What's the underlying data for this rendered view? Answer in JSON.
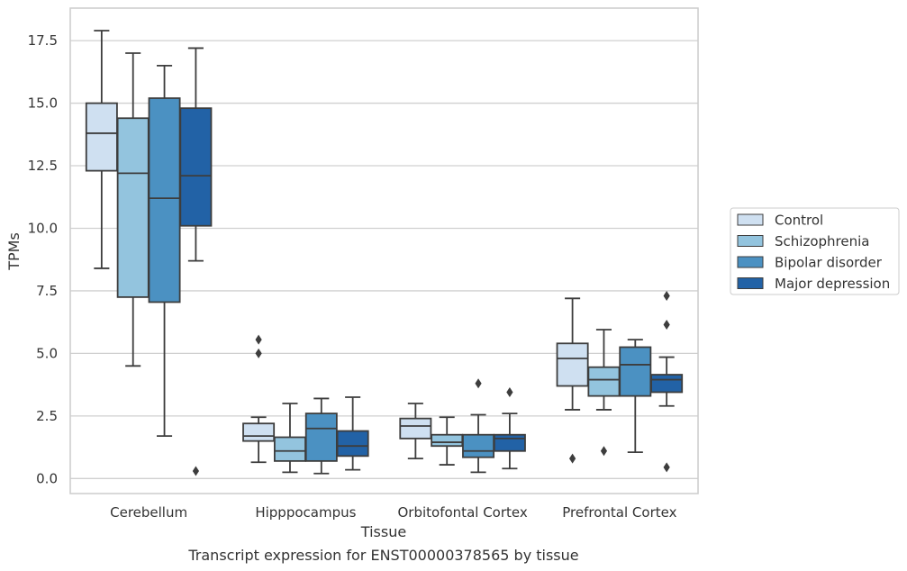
{
  "chart_data": {
    "type": "box",
    "xlabel": "Tissue",
    "ylabel": "TPMs",
    "caption": "Transcript expression for ENST00000378565 by tissue",
    "ylim": [
      -0.6,
      18.8
    ],
    "yticks": [
      "0.0",
      "2.5",
      "5.0",
      "7.5",
      "10.0",
      "12.5",
      "15.0",
      "17.5"
    ],
    "grid": "horizontal",
    "legend_position": "right",
    "categories": [
      "Cerebellum",
      "Hipppocampus",
      "Orbitofontal Cortex",
      "Prefrontal Cortex"
    ],
    "series": [
      {
        "name": "Control",
        "color": "#cfe0f1",
        "boxes": [
          {
            "whisker_low": 8.4,
            "q1": 12.3,
            "median": 13.8,
            "q3": 15.0,
            "whisker_high": 17.9,
            "outliers": []
          },
          {
            "whisker_low": 0.65,
            "q1": 1.5,
            "median": 1.7,
            "q3": 2.2,
            "whisker_high": 2.45,
            "outliers": [
              5.0,
              5.55
            ]
          },
          {
            "whisker_low": 0.8,
            "q1": 1.6,
            "median": 2.1,
            "q3": 2.4,
            "whisker_high": 3.0,
            "outliers": []
          },
          {
            "whisker_low": 2.75,
            "q1": 3.7,
            "median": 4.8,
            "q3": 5.4,
            "whisker_high": 7.2,
            "outliers": [
              0.8
            ]
          }
        ]
      },
      {
        "name": "Schizophrenia",
        "color": "#93c4de",
        "boxes": [
          {
            "whisker_low": 4.5,
            "q1": 7.25,
            "median": 12.2,
            "q3": 14.4,
            "whisker_high": 17.0,
            "outliers": []
          },
          {
            "whisker_low": 0.25,
            "q1": 0.7,
            "median": 1.1,
            "q3": 1.65,
            "whisker_high": 3.0,
            "outliers": []
          },
          {
            "whisker_low": 0.55,
            "q1": 1.3,
            "median": 1.45,
            "q3": 1.75,
            "whisker_high": 2.45,
            "outliers": []
          },
          {
            "whisker_low": 2.75,
            "q1": 3.3,
            "median": 3.95,
            "q3": 4.45,
            "whisker_high": 5.95,
            "outliers": [
              1.1
            ]
          }
        ]
      },
      {
        "name": "Bipolar disorder",
        "color": "#4b91c2",
        "boxes": [
          {
            "whisker_low": 1.7,
            "q1": 7.05,
            "median": 11.2,
            "q3": 15.2,
            "whisker_high": 16.5,
            "outliers": []
          },
          {
            "whisker_low": 0.2,
            "q1": 0.7,
            "median": 2.0,
            "q3": 2.6,
            "whisker_high": 3.2,
            "outliers": []
          },
          {
            "whisker_low": 0.25,
            "q1": 0.85,
            "median": 1.1,
            "q3": 1.75,
            "whisker_high": 2.55,
            "outliers": [
              3.8
            ]
          },
          {
            "whisker_low": 1.05,
            "q1": 3.3,
            "median": 4.55,
            "q3": 5.25,
            "whisker_high": 5.55,
            "outliers": []
          }
        ]
      },
      {
        "name": "Major depression",
        "color": "#2262a6",
        "boxes": [
          {
            "whisker_low": 8.7,
            "q1": 10.1,
            "median": 12.1,
            "q3": 14.8,
            "whisker_high": 17.2,
            "outliers": [
              0.3
            ]
          },
          {
            "whisker_low": 0.35,
            "q1": 0.9,
            "median": 1.3,
            "q3": 1.9,
            "whisker_high": 3.25,
            "outliers": []
          },
          {
            "whisker_low": 0.4,
            "q1": 1.1,
            "median": 1.6,
            "q3": 1.75,
            "whisker_high": 2.6,
            "outliers": [
              3.45
            ]
          },
          {
            "whisker_low": 2.9,
            "q1": 3.45,
            "median": 3.95,
            "q3": 4.15,
            "whisker_high": 4.85,
            "outliers": [
              0.45,
              6.15,
              7.3
            ]
          }
        ]
      }
    ]
  }
}
